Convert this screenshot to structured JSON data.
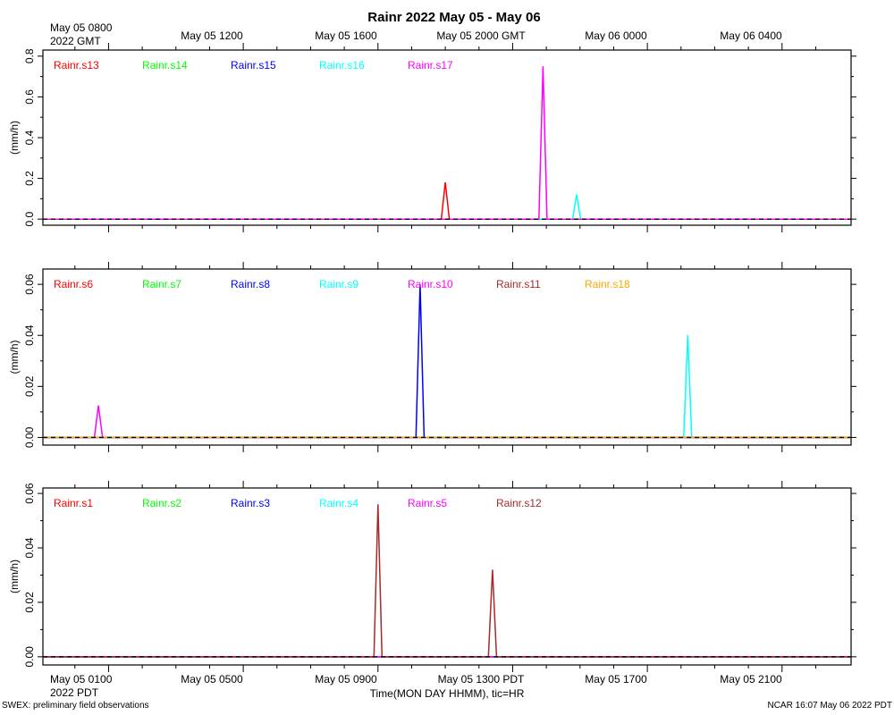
{
  "title": "Rainr 2022 May 05 - May 06",
  "top_axis": {
    "first_label_line1": "May 05 0800",
    "first_label_line2": "2022 GMT",
    "labels": [
      "May 05 1200",
      "May 05 1600",
      "May 05 2000 GMT",
      "May 06 0000",
      "May 06 0400"
    ]
  },
  "bottom_axis": {
    "first_label_line1": "May 05 0100",
    "first_label_line2": "2022 PDT",
    "labels": [
      "May 05 0500",
      "May 05 0900",
      "May 05 1300 PDT",
      "May 05 1700",
      "May 05 2100"
    ],
    "xlabel": "Time(MON DAY HHMM), tic=HR"
  },
  "footer": {
    "left": "SWEX: preliminary field observations",
    "right": "NCAR 16:07 May 06 2022 PDT"
  },
  "colors": {
    "red": "#ff0000",
    "green": "#00ff00",
    "blue": "#0000ff",
    "cyan": "#00ffff",
    "magenta": "#ff00ff",
    "brown": "#a52a2a",
    "orange": "#ffa500"
  },
  "chart_data": [
    {
      "type": "line",
      "ylabel": "(mm/h)",
      "x_units": "hours since May 05 0000 PDT",
      "xlim": [
        -0.95,
        23.05
      ],
      "ylim": [
        -0.03,
        0.83
      ],
      "yticks": [
        "0.0",
        "0.2",
        "0.4",
        "0.6",
        "0.8"
      ],
      "ytick_values": [
        0.0,
        0.2,
        0.4,
        0.6,
        0.8
      ],
      "series": [
        {
          "name": "Rainr.s13",
          "color": "#ff0000",
          "peaks": [
            {
              "x": 11.0,
              "y": 0.18
            }
          ]
        },
        {
          "name": "Rainr.s14",
          "color": "#00ff00",
          "peaks": []
        },
        {
          "name": "Rainr.s15",
          "color": "#0000ff",
          "peaks": []
        },
        {
          "name": "Rainr.s16",
          "color": "#00ffff",
          "peaks": [
            {
              "x": 14.9,
              "y": 0.12
            }
          ]
        },
        {
          "name": "Rainr.s17",
          "color": "#ff00ff",
          "peaks": [
            {
              "x": 13.9,
              "y": 0.75
            }
          ]
        }
      ]
    },
    {
      "type": "line",
      "ylabel": "(mm/h)",
      "x_units": "hours since May 05 0000 PDT",
      "xlim": [
        -0.95,
        23.05
      ],
      "ylim": [
        -0.003,
        0.066
      ],
      "yticks": [
        "0.00",
        "0.02",
        "0.04",
        "0.06"
      ],
      "ytick_values": [
        0.0,
        0.02,
        0.04,
        0.06
      ],
      "series": [
        {
          "name": "Rainr.s6",
          "color": "#ff0000",
          "peaks": []
        },
        {
          "name": "Rainr.s7",
          "color": "#00ff00",
          "peaks": []
        },
        {
          "name": "Rainr.s8",
          "color": "#0000ff",
          "peaks": [
            {
              "x": 10.25,
              "y": 0.06
            }
          ]
        },
        {
          "name": "Rainr.s9",
          "color": "#00ffff",
          "peaks": [
            {
              "x": 18.2,
              "y": 0.04
            }
          ]
        },
        {
          "name": "Rainr.s10",
          "color": "#ff00ff",
          "peaks": [
            {
              "x": 0.7,
              "y": 0.0125
            }
          ]
        },
        {
          "name": "Rainr.s11",
          "color": "#a52a2a",
          "peaks": []
        },
        {
          "name": "Rainr.s18",
          "color": "#ffa500",
          "peaks": []
        }
      ]
    },
    {
      "type": "line",
      "ylabel": "(mm/h)",
      "x_units": "hours since May 05 0000 PDT",
      "xlim": [
        -0.95,
        23.05
      ],
      "ylim": [
        -0.003,
        0.062
      ],
      "yticks": [
        "0.00",
        "0.02",
        "0.04",
        "0.06"
      ],
      "ytick_values": [
        0.0,
        0.02,
        0.04,
        0.06
      ],
      "series": [
        {
          "name": "Rainr.s1",
          "color": "#ff0000",
          "peaks": []
        },
        {
          "name": "Rainr.s2",
          "color": "#00ff00",
          "peaks": []
        },
        {
          "name": "Rainr.s3",
          "color": "#0000ff",
          "peaks": []
        },
        {
          "name": "Rainr.s4",
          "color": "#00ffff",
          "peaks": []
        },
        {
          "name": "Rainr.s5",
          "color": "#ff00ff",
          "peaks": []
        },
        {
          "name": "Rainr.s12",
          "color": "#a52a2a",
          "peaks": [
            {
              "x": 9.0,
              "y": 0.056
            },
            {
              "x": 12.4,
              "y": 0.032
            }
          ]
        }
      ]
    }
  ]
}
